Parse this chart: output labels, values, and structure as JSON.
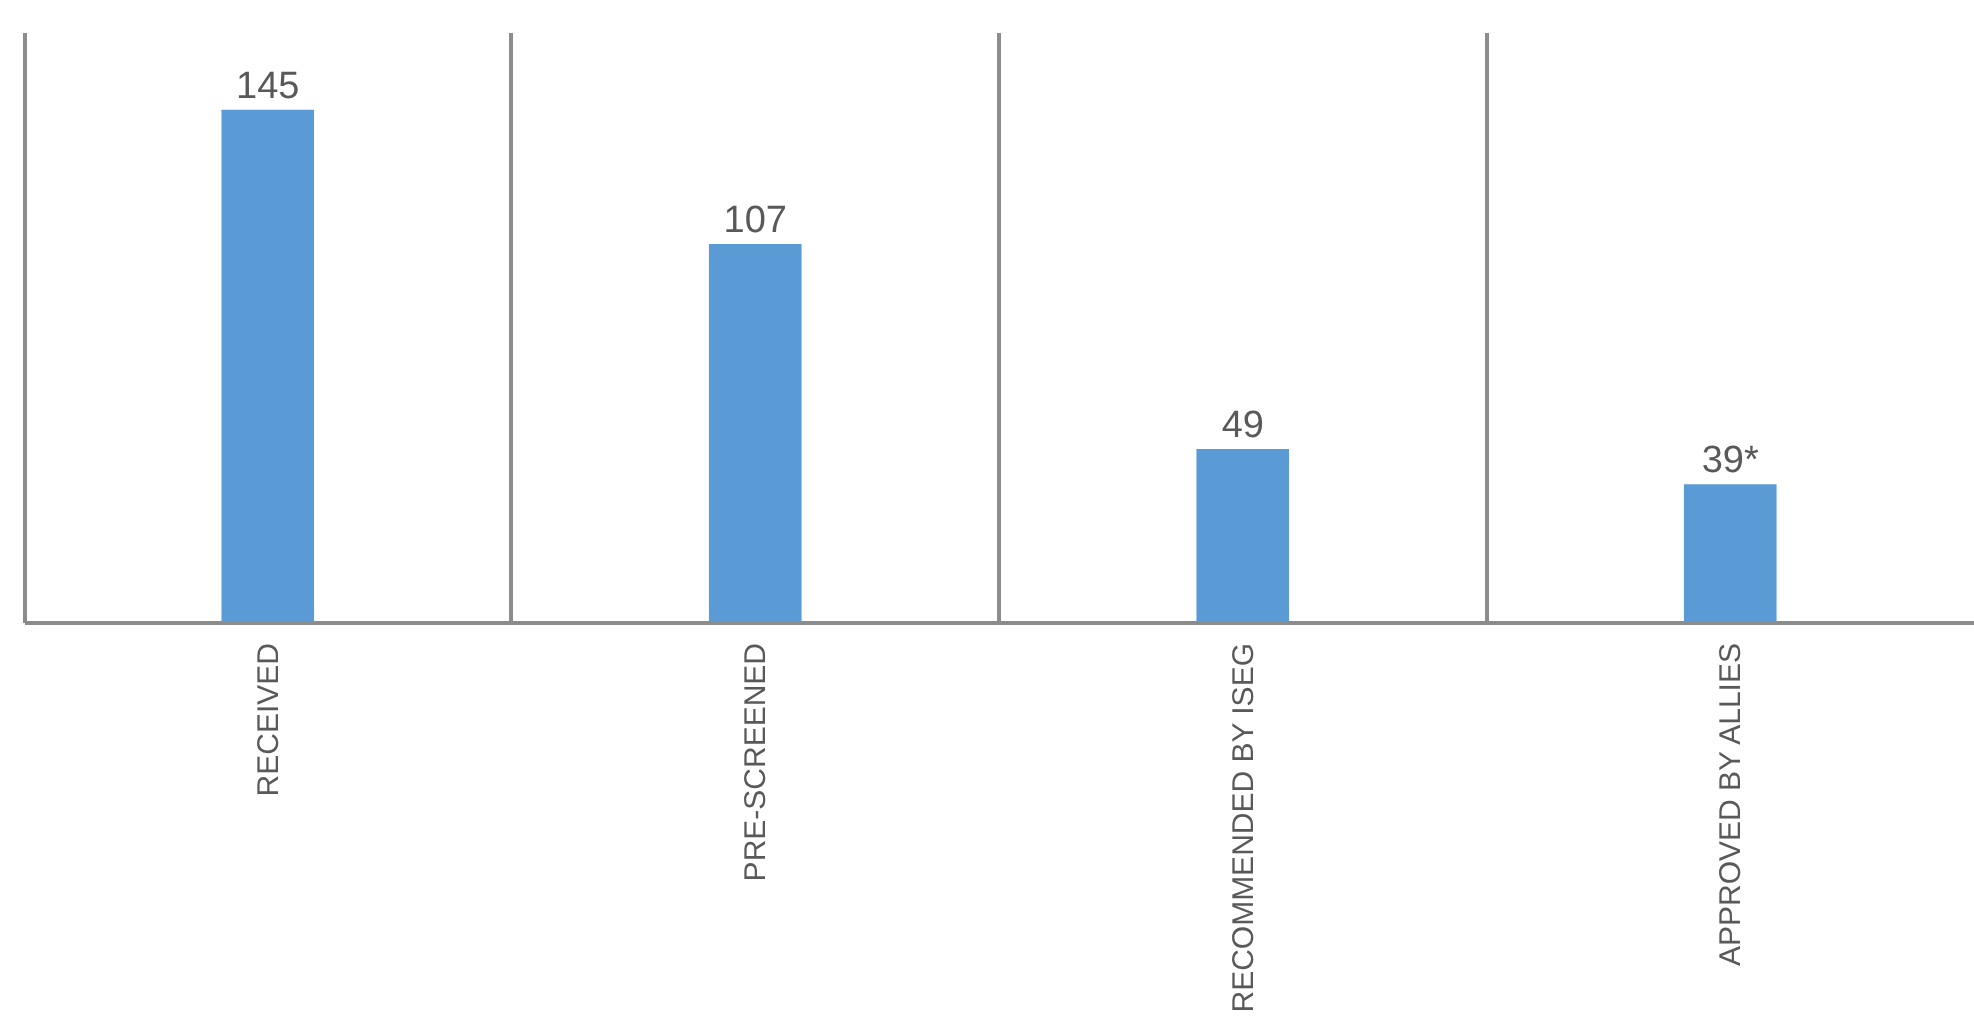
{
  "chart_data": {
    "type": "bar",
    "categories": [
      "RECEIVED",
      "PRE-SCREENED",
      "RECOMMENDED BY ISEG",
      "APPROVED BY ALLIES"
    ],
    "values": [
      145,
      107,
      49,
      39
    ],
    "value_labels": [
      "145",
      "107",
      "49",
      "39*"
    ],
    "color": "#5b9bd5",
    "ylim": [
      0,
      167
    ],
    "grid": "x",
    "tick_labels": "x"
  }
}
